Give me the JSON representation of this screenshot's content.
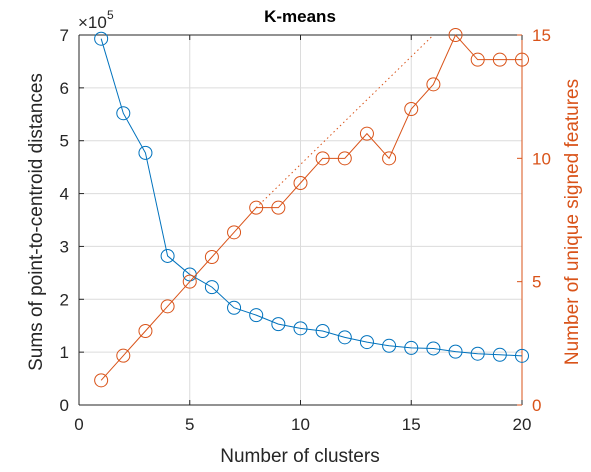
{
  "chart_data": {
    "type": "line",
    "title": "K-means",
    "xlabel": "Number of clusters",
    "ylabel_left": "Sums of point-to-centroid distances",
    "ylabel_right": "Number of unique signed features",
    "left_exponent": "×10",
    "left_exponent_power": "5",
    "xlim": [
      0,
      20
    ],
    "ylim_left": [
      0,
      7
    ],
    "ylim_right": [
      0,
      15
    ],
    "x_ticks": [
      "0",
      "5",
      "10",
      "15",
      "20"
    ],
    "y_left_ticks": [
      "0",
      "1",
      "2",
      "3",
      "4",
      "5",
      "6",
      "7"
    ],
    "y_right_ticks": [
      "0",
      "5",
      "10",
      "15"
    ],
    "grid": true,
    "colors": {
      "left": "#0072bd",
      "right": "#d95319",
      "grid": "#dcdcdc",
      "axis": "#262626"
    },
    "series": [
      {
        "axis": "left",
        "marker": "circle",
        "x": [
          1,
          2,
          3,
          4,
          5,
          6,
          7,
          8,
          9,
          10,
          11,
          12,
          13,
          14,
          15,
          16,
          17,
          18,
          19,
          20
        ],
        "values": [
          6.93,
          5.52,
          4.77,
          2.82,
          2.47,
          2.23,
          1.84,
          1.7,
          1.53,
          1.45,
          1.4,
          1.28,
          1.19,
          1.12,
          1.08,
          1.07,
          1.01,
          0.97,
          0.95,
          0.93
        ]
      },
      {
        "axis": "right",
        "marker": "circle",
        "x": [
          1,
          2,
          3,
          4,
          5,
          6,
          7,
          8,
          9,
          10,
          11,
          12,
          13,
          14,
          15,
          16,
          17,
          18,
          19,
          20
        ],
        "values": [
          1,
          2,
          3,
          4,
          5,
          6,
          7,
          8,
          8,
          9,
          10,
          10,
          11,
          10,
          12,
          13,
          15,
          14,
          14,
          14
        ]
      },
      {
        "axis": "right",
        "style": "dotted",
        "x": [
          8,
          16
        ],
        "values": [
          8,
          15
        ]
      }
    ]
  }
}
